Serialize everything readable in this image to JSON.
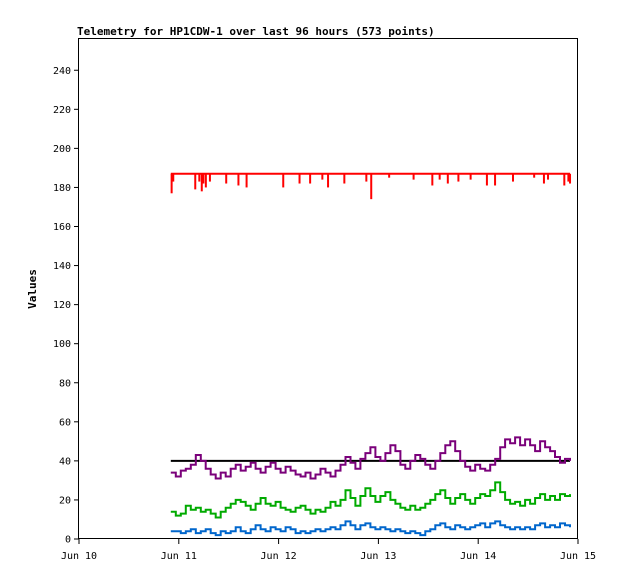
{
  "chart_data": {
    "type": "line",
    "title": "Telemetry for HP1CDW-1 over last 96 hours (573 points)",
    "xlabel": "",
    "ylabel": "Values",
    "x_ticks": [
      "Jun 10",
      "Jun 11",
      "Jun 12",
      "Jun 13",
      "Jun 14",
      "Jun 15"
    ],
    "y_ticks": [
      "0",
      "20",
      "40",
      "60",
      "80",
      "100",
      "120",
      "140",
      "160",
      "180",
      "200",
      "220",
      "240"
    ],
    "xlim": [
      0,
      5
    ],
    "ylim": [
      0,
      256
    ],
    "x_unit": "days since Jun 10 00:00",
    "grid": false,
    "series": [
      {
        "color": "#ff0000",
        "baseline": 187,
        "dips": [
          [
            0.93,
            177
          ],
          [
            0.95,
            183
          ],
          [
            1.22,
            179
          ],
          [
            1.27,
            183
          ],
          [
            1.3,
            178
          ],
          [
            1.32,
            182
          ],
          [
            1.35,
            180
          ],
          [
            1.4,
            183
          ],
          [
            1.6,
            182
          ],
          [
            1.75,
            181
          ],
          [
            1.85,
            180
          ],
          [
            2.3,
            180
          ],
          [
            2.5,
            182
          ],
          [
            2.63,
            182
          ],
          [
            2.78,
            184
          ],
          [
            2.85,
            180
          ],
          [
            3.05,
            182
          ],
          [
            3.32,
            183
          ],
          [
            3.38,
            174
          ],
          [
            3.6,
            185
          ],
          [
            3.9,
            184
          ],
          [
            4.13,
            181
          ],
          [
            4.22,
            184
          ],
          [
            4.32,
            182
          ],
          [
            4.45,
            183
          ],
          [
            4.6,
            184
          ],
          [
            4.8,
            181
          ],
          [
            4.9,
            181
          ],
          [
            5.12,
            183
          ],
          [
            5.38,
            185
          ],
          [
            5.5,
            182
          ],
          [
            5.55,
            184
          ],
          [
            5.75,
            181
          ],
          [
            5.8,
            183
          ],
          [
            5.82,
            182
          ]
        ]
      },
      {
        "color": "#000000",
        "points": [
          [
            0.92,
            40
          ],
          [
            4.92,
            40
          ]
        ]
      },
      {
        "color": "#7a007a",
        "points": [
          [
            0.92,
            34
          ],
          [
            0.97,
            32
          ],
          [
            1.02,
            35
          ],
          [
            1.07,
            36
          ],
          [
            1.12,
            38
          ],
          [
            1.17,
            43
          ],
          [
            1.22,
            40
          ],
          [
            1.27,
            36
          ],
          [
            1.32,
            33
          ],
          [
            1.37,
            31
          ],
          [
            1.42,
            34
          ],
          [
            1.47,
            32
          ],
          [
            1.52,
            36
          ],
          [
            1.57,
            38
          ],
          [
            1.62,
            35
          ],
          [
            1.67,
            37
          ],
          [
            1.72,
            39
          ],
          [
            1.77,
            36
          ],
          [
            1.82,
            34
          ],
          [
            1.87,
            37
          ],
          [
            1.92,
            39
          ],
          [
            1.97,
            36
          ],
          [
            2.02,
            34
          ],
          [
            2.07,
            37
          ],
          [
            2.12,
            35
          ],
          [
            2.17,
            33
          ],
          [
            2.22,
            32
          ],
          [
            2.27,
            34
          ],
          [
            2.32,
            31
          ],
          [
            2.37,
            33
          ],
          [
            2.42,
            36
          ],
          [
            2.47,
            34
          ],
          [
            2.52,
            32
          ],
          [
            2.57,
            35
          ],
          [
            2.62,
            38
          ],
          [
            2.67,
            42
          ],
          [
            2.72,
            39
          ],
          [
            2.77,
            36
          ],
          [
            2.82,
            41
          ],
          [
            2.87,
            44
          ],
          [
            2.92,
            47
          ],
          [
            2.97,
            42
          ],
          [
            3.02,
            40
          ],
          [
            3.07,
            44
          ],
          [
            3.12,
            48
          ],
          [
            3.17,
            45
          ],
          [
            3.22,
            38
          ],
          [
            3.27,
            36
          ],
          [
            3.32,
            40
          ],
          [
            3.37,
            43
          ],
          [
            3.42,
            41
          ],
          [
            3.47,
            38
          ],
          [
            3.52,
            36
          ],
          [
            3.57,
            40
          ],
          [
            3.62,
            44
          ],
          [
            3.67,
            48
          ],
          [
            3.72,
            50
          ],
          [
            3.77,
            45
          ],
          [
            3.82,
            40
          ],
          [
            3.87,
            37
          ],
          [
            3.92,
            35
          ],
          [
            3.97,
            38
          ],
          [
            4.02,
            36
          ],
          [
            4.07,
            35
          ],
          [
            4.12,
            38
          ],
          [
            4.17,
            41
          ],
          [
            4.22,
            47
          ],
          [
            4.27,
            51
          ],
          [
            4.32,
            49
          ],
          [
            4.37,
            52
          ],
          [
            4.42,
            48
          ],
          [
            4.47,
            51
          ],
          [
            4.52,
            48
          ],
          [
            4.57,
            45
          ],
          [
            4.62,
            50
          ],
          [
            4.67,
            47
          ],
          [
            4.72,
            45
          ],
          [
            4.77,
            42
          ],
          [
            4.82,
            39
          ],
          [
            4.87,
            41
          ],
          [
            4.92,
            40
          ]
        ]
      },
      {
        "color": "#00aa00",
        "points": [
          [
            0.92,
            14
          ],
          [
            0.97,
            12
          ],
          [
            1.02,
            13
          ],
          [
            1.07,
            17
          ],
          [
            1.12,
            15
          ],
          [
            1.17,
            16
          ],
          [
            1.22,
            14
          ],
          [
            1.27,
            15
          ],
          [
            1.32,
            13
          ],
          [
            1.37,
            11
          ],
          [
            1.42,
            14
          ],
          [
            1.47,
            16
          ],
          [
            1.52,
            18
          ],
          [
            1.57,
            20
          ],
          [
            1.62,
            19
          ],
          [
            1.67,
            17
          ],
          [
            1.72,
            15
          ],
          [
            1.77,
            18
          ],
          [
            1.82,
            21
          ],
          [
            1.87,
            18
          ],
          [
            1.92,
            17
          ],
          [
            1.97,
            19
          ],
          [
            2.02,
            16
          ],
          [
            2.07,
            15
          ],
          [
            2.12,
            14
          ],
          [
            2.17,
            16
          ],
          [
            2.22,
            17
          ],
          [
            2.27,
            15
          ],
          [
            2.32,
            13
          ],
          [
            2.37,
            15
          ],
          [
            2.42,
            14
          ],
          [
            2.47,
            16
          ],
          [
            2.52,
            19
          ],
          [
            2.57,
            17
          ],
          [
            2.62,
            20
          ],
          [
            2.67,
            25
          ],
          [
            2.72,
            21
          ],
          [
            2.77,
            17
          ],
          [
            2.82,
            22
          ],
          [
            2.87,
            26
          ],
          [
            2.92,
            22
          ],
          [
            2.97,
            19
          ],
          [
            3.02,
            22
          ],
          [
            3.07,
            24
          ],
          [
            3.12,
            20
          ],
          [
            3.17,
            18
          ],
          [
            3.22,
            16
          ],
          [
            3.27,
            15
          ],
          [
            3.32,
            17
          ],
          [
            3.37,
            15
          ],
          [
            3.42,
            16
          ],
          [
            3.47,
            18
          ],
          [
            3.52,
            20
          ],
          [
            3.57,
            23
          ],
          [
            3.62,
            25
          ],
          [
            3.67,
            21
          ],
          [
            3.72,
            18
          ],
          [
            3.77,
            21
          ],
          [
            3.82,
            23
          ],
          [
            3.87,
            20
          ],
          [
            3.92,
            18
          ],
          [
            3.97,
            21
          ],
          [
            4.02,
            23
          ],
          [
            4.07,
            22
          ],
          [
            4.12,
            25
          ],
          [
            4.17,
            29
          ],
          [
            4.22,
            24
          ],
          [
            4.27,
            20
          ],
          [
            4.32,
            18
          ],
          [
            4.37,
            19
          ],
          [
            4.42,
            17
          ],
          [
            4.47,
            20
          ],
          [
            4.52,
            18
          ],
          [
            4.57,
            21
          ],
          [
            4.62,
            23
          ],
          [
            4.67,
            20
          ],
          [
            4.72,
            22
          ],
          [
            4.77,
            20
          ],
          [
            4.82,
            23
          ],
          [
            4.87,
            22
          ],
          [
            4.92,
            23
          ]
        ]
      },
      {
        "color": "#0066cc",
        "points": [
          [
            0.92,
            4
          ],
          [
            0.97,
            4
          ],
          [
            1.02,
            3
          ],
          [
            1.07,
            4
          ],
          [
            1.12,
            5
          ],
          [
            1.17,
            3
          ],
          [
            1.22,
            4
          ],
          [
            1.27,
            5
          ],
          [
            1.32,
            3
          ],
          [
            1.37,
            2
          ],
          [
            1.42,
            4
          ],
          [
            1.47,
            3
          ],
          [
            1.52,
            4
          ],
          [
            1.57,
            6
          ],
          [
            1.62,
            4
          ],
          [
            1.67,
            3
          ],
          [
            1.72,
            5
          ],
          [
            1.77,
            7
          ],
          [
            1.82,
            5
          ],
          [
            1.87,
            4
          ],
          [
            1.92,
            6
          ],
          [
            1.97,
            5
          ],
          [
            2.02,
            4
          ],
          [
            2.07,
            6
          ],
          [
            2.12,
            5
          ],
          [
            2.17,
            3
          ],
          [
            2.22,
            4
          ],
          [
            2.27,
            3
          ],
          [
            2.32,
            4
          ],
          [
            2.37,
            5
          ],
          [
            2.42,
            4
          ],
          [
            2.47,
            5
          ],
          [
            2.52,
            6
          ],
          [
            2.57,
            5
          ],
          [
            2.62,
            7
          ],
          [
            2.67,
            9
          ],
          [
            2.72,
            7
          ],
          [
            2.77,
            5
          ],
          [
            2.82,
            7
          ],
          [
            2.87,
            8
          ],
          [
            2.92,
            6
          ],
          [
            2.97,
            5
          ],
          [
            3.02,
            6
          ],
          [
            3.07,
            5
          ],
          [
            3.12,
            4
          ],
          [
            3.17,
            5
          ],
          [
            3.22,
            4
          ],
          [
            3.27,
            3
          ],
          [
            3.32,
            4
          ],
          [
            3.37,
            3
          ],
          [
            3.42,
            2
          ],
          [
            3.47,
            4
          ],
          [
            3.52,
            5
          ],
          [
            3.57,
            7
          ],
          [
            3.62,
            8
          ],
          [
            3.67,
            6
          ],
          [
            3.72,
            5
          ],
          [
            3.77,
            7
          ],
          [
            3.82,
            6
          ],
          [
            3.87,
            5
          ],
          [
            3.92,
            6
          ],
          [
            3.97,
            7
          ],
          [
            4.02,
            8
          ],
          [
            4.07,
            6
          ],
          [
            4.12,
            8
          ],
          [
            4.17,
            9
          ],
          [
            4.22,
            7
          ],
          [
            4.27,
            6
          ],
          [
            4.32,
            5
          ],
          [
            4.37,
            6
          ],
          [
            4.42,
            5
          ],
          [
            4.47,
            6
          ],
          [
            4.52,
            5
          ],
          [
            4.57,
            7
          ],
          [
            4.62,
            8
          ],
          [
            4.67,
            6
          ],
          [
            4.72,
            7
          ],
          [
            4.77,
            6
          ],
          [
            4.82,
            8
          ],
          [
            4.87,
            7
          ],
          [
            4.92,
            6
          ]
        ]
      }
    ]
  }
}
